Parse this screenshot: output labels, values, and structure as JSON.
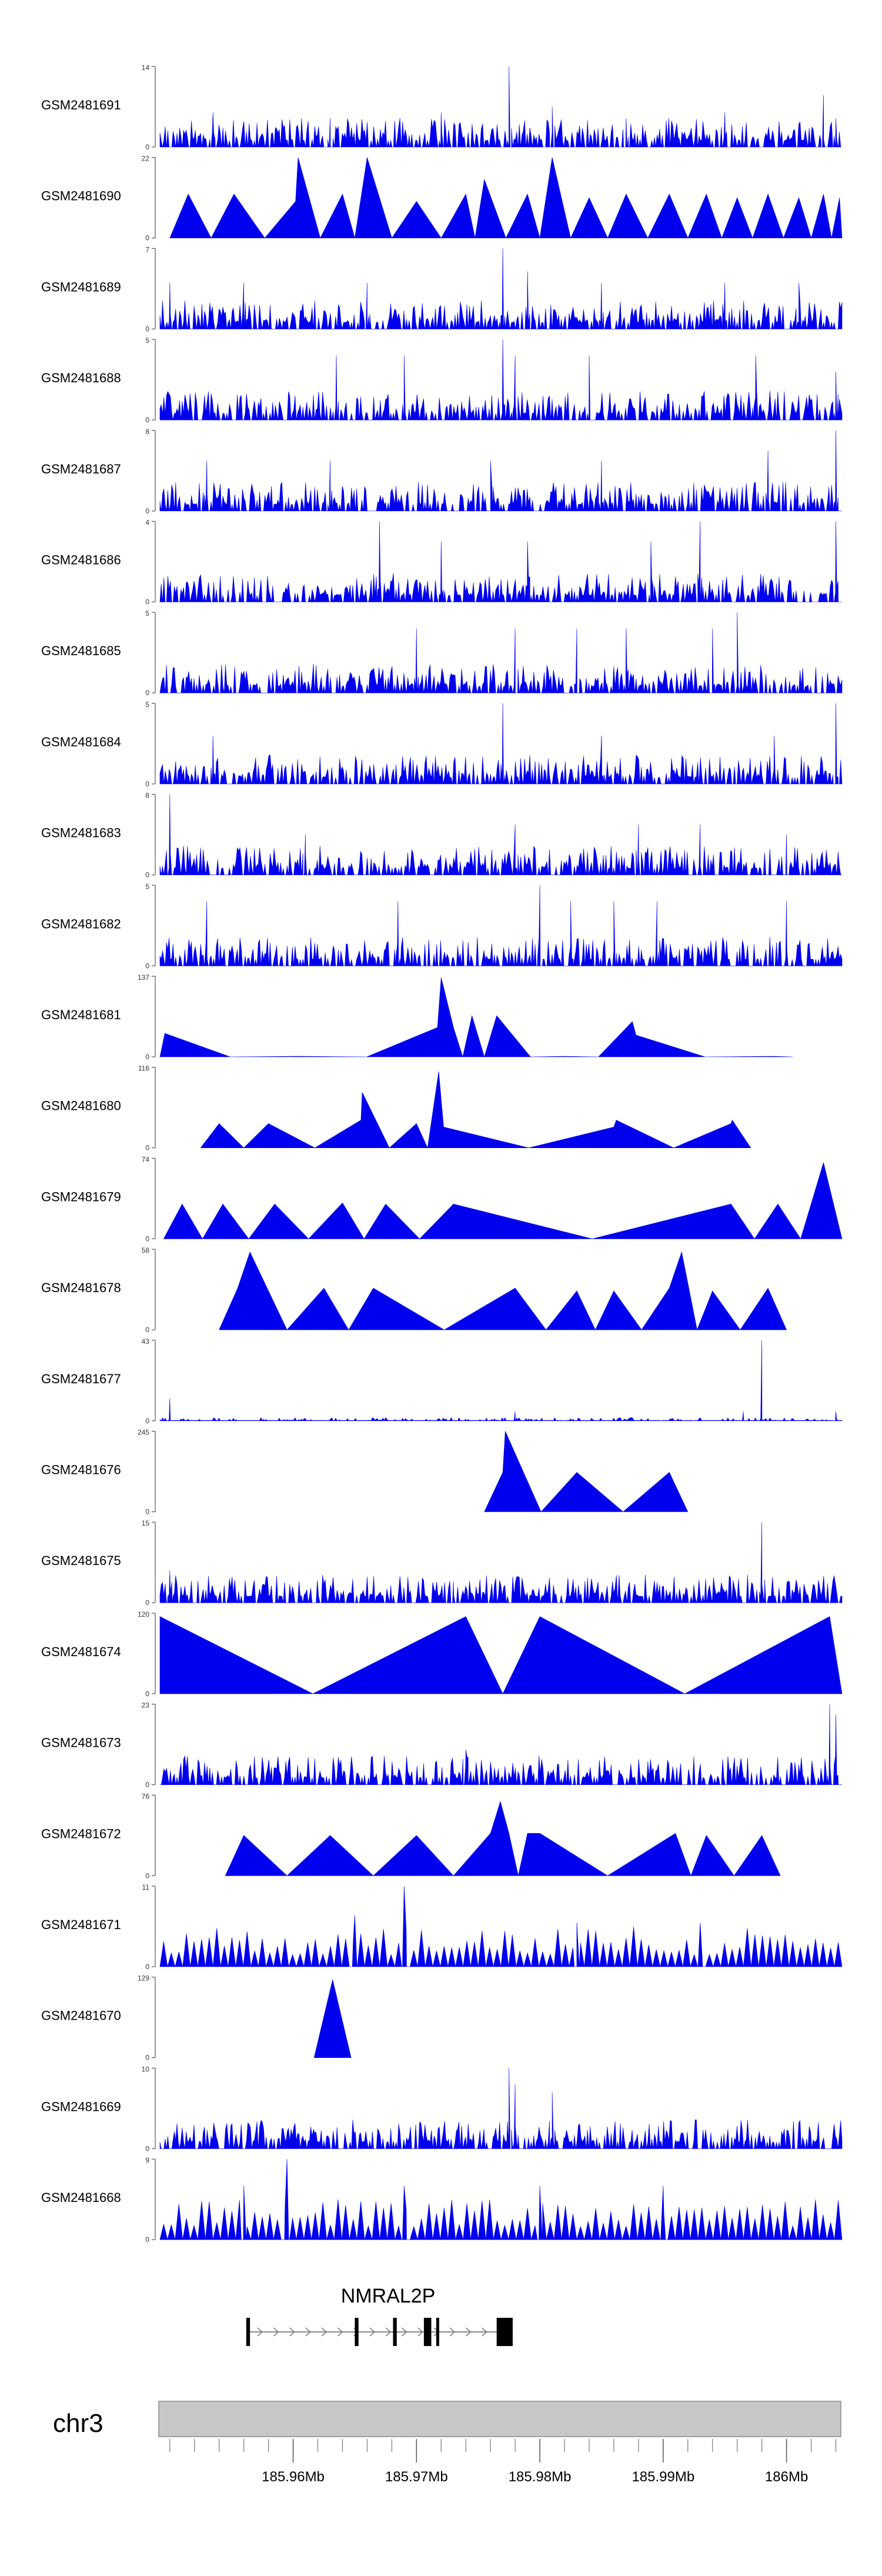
{
  "chart_data": {
    "type": "area",
    "colors": {
      "track_fill": "#0000ee",
      "axis": "#555555",
      "ideogram_fill": "#c8c8c8",
      "text": "#000000"
    },
    "x_range_mb": [
      185.9492,
      186.0045
    ],
    "tracks": [
      {
        "name": "GSM2481691",
        "ymax": 14,
        "profile": "dense",
        "seed": 11,
        "peaks": [
          [
            185.9535,
            6
          ],
          [
            185.963,
            5
          ],
          [
            185.972,
            6
          ],
          [
            185.9775,
            14
          ],
          [
            185.981,
            7
          ],
          [
            185.987,
            5
          ],
          [
            185.995,
            6
          ],
          [
            186.003,
            9
          ],
          [
            186.004,
            5
          ]
        ]
      },
      {
        "name": "GSM2481690",
        "ymax": 22,
        "profile": "triangles",
        "seed": 12,
        "peaks": [
          [
            185.9515,
            12
          ],
          [
            185.9552,
            12
          ],
          [
            185.9602,
            10
          ],
          [
            185.9604,
            22
          ],
          [
            185.964,
            12
          ],
          [
            185.966,
            22
          ],
          [
            185.97,
            10
          ],
          [
            185.974,
            12
          ],
          [
            185.9755,
            16
          ],
          [
            185.979,
            12
          ],
          [
            185.981,
            22
          ],
          [
            185.984,
            11
          ],
          [
            185.987,
            12
          ],
          [
            185.9905,
            12
          ],
          [
            185.9935,
            12
          ],
          [
            185.996,
            11
          ],
          [
            185.9985,
            12
          ],
          [
            186.001,
            11
          ],
          [
            186.003,
            12
          ],
          [
            186.0043,
            11
          ]
        ]
      },
      {
        "name": "GSM2481689",
        "ymax": 7,
        "profile": "dense",
        "seed": 13,
        "peaks": [
          [
            185.95,
            4
          ],
          [
            185.956,
            4
          ],
          [
            185.966,
            4
          ],
          [
            185.977,
            7
          ],
          [
            185.979,
            5
          ],
          [
            185.985,
            4
          ],
          [
            185.995,
            4
          ],
          [
            186.001,
            4
          ]
        ]
      },
      {
        "name": "GSM2481688",
        "ymax": 5,
        "profile": "dense",
        "seed": 14,
        "peaks": [
          [
            185.9635,
            4
          ],
          [
            185.969,
            4
          ],
          [
            185.977,
            5
          ],
          [
            185.978,
            4
          ],
          [
            185.984,
            4
          ],
          [
            185.9975,
            4
          ],
          [
            186.004,
            3
          ]
        ]
      },
      {
        "name": "GSM2481687",
        "ymax": 8,
        "profile": "dense",
        "seed": 15,
        "peaks": [
          [
            185.953,
            5
          ],
          [
            185.963,
            5
          ],
          [
            185.976,
            5
          ],
          [
            185.985,
            5
          ],
          [
            185.9985,
            6
          ],
          [
            186.004,
            8
          ]
        ]
      },
      {
        "name": "GSM2481686",
        "ymax": 4,
        "profile": "dense",
        "seed": 16,
        "peaks": [
          [
            185.967,
            4
          ],
          [
            185.972,
            3
          ],
          [
            185.979,
            3
          ],
          [
            185.989,
            3
          ],
          [
            185.993,
            4
          ],
          [
            186.004,
            4
          ]
        ]
      },
      {
        "name": "GSM2481685",
        "ymax": 5,
        "profile": "dense",
        "seed": 17,
        "peaks": [
          [
            185.97,
            4
          ],
          [
            185.978,
            4
          ],
          [
            185.983,
            4
          ],
          [
            185.987,
            4
          ],
          [
            185.994,
            4
          ],
          [
            185.996,
            5
          ]
        ]
      },
      {
        "name": "GSM2481684",
        "ymax": 5,
        "profile": "dense",
        "seed": 18,
        "peaks": [
          [
            185.9535,
            3
          ],
          [
            185.977,
            5
          ],
          [
            185.985,
            3
          ],
          [
            185.999,
            3
          ],
          [
            186.004,
            5
          ]
        ]
      },
      {
        "name": "GSM2481683",
        "ymax": 8,
        "profile": "dense",
        "seed": 19,
        "peaks": [
          [
            185.95,
            8
          ],
          [
            185.961,
            4
          ],
          [
            185.978,
            5
          ],
          [
            185.988,
            5
          ],
          [
            185.993,
            5
          ],
          [
            186.0,
            4
          ]
        ]
      },
      {
        "name": "GSM2481682",
        "ymax": 5,
        "profile": "dense",
        "seed": 20,
        "peaks": [
          [
            185.953,
            4
          ],
          [
            185.9685,
            4
          ],
          [
            185.98,
            5
          ],
          [
            185.9825,
            4
          ],
          [
            185.986,
            4
          ],
          [
            185.9895,
            4
          ],
          [
            186.0,
            4
          ]
        ]
      },
      {
        "name": "GSM2481681",
        "ymax": 137,
        "profile": "triangles",
        "seed": 21,
        "peaks": [
          [
            185.9496,
            40
          ],
          [
            185.9602,
            1
          ],
          [
            185.9717,
            50
          ],
          [
            185.972,
            135
          ],
          [
            185.973,
            50
          ],
          [
            185.9745,
            70
          ],
          [
            185.9765,
            70
          ],
          [
            185.982,
            1
          ],
          [
            185.9875,
            60
          ],
          [
            185.9878,
            37
          ],
          [
            185.999,
            1
          ]
        ]
      },
      {
        "name": "GSM2481680",
        "ymax": 116,
        "profile": "triangles",
        "seed": 22,
        "peaks": [
          [
            185.954,
            35
          ],
          [
            185.958,
            35
          ],
          [
            185.9655,
            40
          ],
          [
            185.9656,
            80
          ],
          [
            185.97,
            35
          ],
          [
            185.9718,
            110
          ],
          [
            185.9722,
            30
          ],
          [
            185.986,
            30
          ],
          [
            185.9862,
            40
          ],
          [
            185.9955,
            35
          ],
          [
            185.9956,
            40
          ]
        ]
      },
      {
        "name": "GSM2481679",
        "ymax": 74,
        "profile": "triangles",
        "seed": 23,
        "peaks": [
          [
            185.951,
            32
          ],
          [
            185.9543,
            32
          ],
          [
            185.9585,
            32
          ],
          [
            185.964,
            33
          ],
          [
            185.9675,
            32
          ],
          [
            185.973,
            32
          ],
          [
            185.9955,
            32
          ],
          [
            185.9993,
            32
          ],
          [
            186.003,
            70
          ]
        ]
      },
      {
        "name": "GSM2481678",
        "ymax": 58,
        "profile": "triangles",
        "seed": 24,
        "peaks": [
          [
            185.9555,
            30
          ],
          [
            185.9565,
            56
          ],
          [
            185.9625,
            30
          ],
          [
            185.9665,
            30
          ],
          [
            185.978,
            30
          ],
          [
            185.983,
            28
          ],
          [
            185.986,
            28
          ],
          [
            185.9905,
            30
          ],
          [
            185.9915,
            56
          ],
          [
            185.994,
            28
          ],
          [
            185.9985,
            30
          ]
        ]
      },
      {
        "name": "GSM2481677",
        "ymax": 43,
        "profile": "mostly-flat",
        "seed": 25,
        "peaks": [
          [
            185.95,
            12
          ],
          [
            185.978,
            5
          ],
          [
            185.9965,
            5
          ],
          [
            185.998,
            43
          ],
          [
            186.004,
            5
          ]
        ]
      },
      {
        "name": "GSM2481676",
        "ymax": 245,
        "profile": "triangles",
        "seed": 26,
        "peaks": [
          [
            185.977,
            120
          ],
          [
            185.9772,
            245
          ],
          [
            185.983,
            120
          ],
          [
            185.9905,
            120
          ]
        ]
      },
      {
        "name": "GSM2481675",
        "ymax": 15,
        "profile": "dense",
        "seed": 27,
        "peaks": [
          [
            185.95,
            6
          ],
          [
            185.973,
            4
          ],
          [
            185.998,
            15
          ]
        ]
      },
      {
        "name": "GSM2481674",
        "ymax": 120,
        "profile": "triangles",
        "seed": 28,
        "peaks": [
          [
            185.9492,
            115
          ],
          [
            185.974,
            115
          ],
          [
            185.98,
            115
          ],
          [
            186.0035,
            115
          ]
        ]
      },
      {
        "name": "GSM2481673",
        "ymax": 23,
        "profile": "dense",
        "seed": 29,
        "peaks": [
          [
            185.974,
            10
          ],
          [
            186.0035,
            23
          ],
          [
            186.004,
            20
          ]
        ]
      },
      {
        "name": "GSM2481672",
        "ymax": 76,
        "profile": "triangles",
        "seed": 30,
        "peaks": [
          [
            185.956,
            38
          ],
          [
            185.963,
            38
          ],
          [
            185.97,
            38
          ],
          [
            185.976,
            40
          ],
          [
            185.9768,
            70
          ],
          [
            185.9775,
            40
          ],
          [
            185.979,
            40
          ],
          [
            185.98,
            40
          ],
          [
            185.991,
            40
          ],
          [
            185.9935,
            38
          ],
          [
            185.998,
            38
          ]
        ]
      },
      {
        "name": "GSM2481671",
        "ymax": 11,
        "profile": "triangles-dense",
        "seed": 31,
        "peaks": [
          [
            185.969,
            11
          ],
          [
            185.965,
            7
          ],
          [
            185.983,
            6
          ],
          [
            185.993,
            6
          ]
        ]
      },
      {
        "name": "GSM2481670",
        "ymax": 129,
        "profile": "triangles",
        "seed": 32,
        "peaks": [
          [
            185.9632,
            125
          ]
        ]
      },
      {
        "name": "GSM2481669",
        "ymax": 10,
        "profile": "dense",
        "seed": 33,
        "peaks": [
          [
            185.9775,
            10
          ],
          [
            185.978,
            8
          ],
          [
            185.981,
            7
          ]
        ]
      },
      {
        "name": "GSM2481668",
        "ymax": 9,
        "profile": "triangles-dense",
        "seed": 34,
        "peaks": [
          [
            185.9595,
            9
          ],
          [
            185.956,
            6
          ],
          [
            185.969,
            6
          ],
          [
            185.98,
            6
          ],
          [
            185.99,
            6
          ]
        ]
      }
    ],
    "gene": {
      "name": "NMRAL2P",
      "start_mb": 185.9562,
      "end_mb": 185.9778,
      "strand": "+",
      "exons": [
        {
          "start_mb": 185.9562,
          "end_mb": 185.9565,
          "kind": "thin"
        },
        {
          "start_mb": 185.965,
          "end_mb": 185.9653,
          "kind": "thin"
        },
        {
          "start_mb": 185.9681,
          "end_mb": 185.9684,
          "kind": "thin"
        },
        {
          "start_mb": 185.9706,
          "end_mb": 185.9712,
          "kind": "thick"
        },
        {
          "start_mb": 185.9716,
          "end_mb": 185.9718,
          "kind": "thin"
        },
        {
          "start_mb": 185.9765,
          "end_mb": 185.9778,
          "kind": "thick"
        }
      ]
    },
    "genome_axis": {
      "chromosome": "chr3",
      "tick_labels": [
        "185.96Mb",
        "185.97Mb",
        "185.98Mb",
        "185.99Mb",
        "186Mb"
      ],
      "tick_positions_mb": [
        185.96,
        185.97,
        185.98,
        185.99,
        186.0
      ],
      "minor_step_mb": 0.002
    }
  }
}
